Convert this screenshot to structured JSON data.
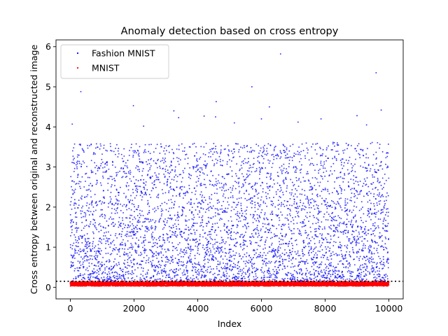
{
  "chart_data": {
    "type": "scatter",
    "title": "Anomaly detection based on cross entropy",
    "xlabel": "Index",
    "ylabel": "Cross entropy between original and reconstructed image",
    "xlim": [
      -450,
      10450
    ],
    "ylim": [
      -0.29,
      6.17
    ],
    "xticks": [
      0,
      2000,
      4000,
      6000,
      8000,
      10000
    ],
    "yticks": [
      0,
      1,
      2,
      3,
      4,
      5,
      6
    ],
    "grid": false,
    "legend_position": "top-left",
    "threshold": 0.15,
    "series": [
      {
        "name": "Fashion MNIST",
        "color": "#0000ff",
        "count": 10000,
        "value_range": [
          0.05,
          5.82
        ],
        "outliers": [
          {
            "x": 6600,
            "y": 5.82
          },
          {
            "x": 9600,
            "y": 5.35
          },
          {
            "x": 5700,
            "y": 5.0
          },
          {
            "x": 330,
            "y": 4.88
          },
          {
            "x": 4580,
            "y": 4.63
          },
          {
            "x": 1980,
            "y": 4.53
          },
          {
            "x": 6250,
            "y": 4.5
          },
          {
            "x": 9760,
            "y": 4.42
          },
          {
            "x": 3250,
            "y": 4.4
          },
          {
            "x": 9000,
            "y": 4.28
          },
          {
            "x": 4200,
            "y": 4.27
          },
          {
            "x": 4560,
            "y": 4.25
          },
          {
            "x": 3400,
            "y": 4.23
          },
          {
            "x": 6000,
            "y": 4.2
          },
          {
            "x": 7870,
            "y": 4.2
          },
          {
            "x": 7150,
            "y": 4.12
          },
          {
            "x": 5150,
            "y": 4.1
          },
          {
            "x": 60,
            "y": 4.07
          },
          {
            "x": 9300,
            "y": 4.05
          },
          {
            "x": 2300,
            "y": 4.02
          }
        ]
      },
      {
        "name": "MNIST",
        "color": "#ff0000",
        "count": 10000,
        "value_range": [
          0.01,
          0.18
        ]
      }
    ]
  }
}
